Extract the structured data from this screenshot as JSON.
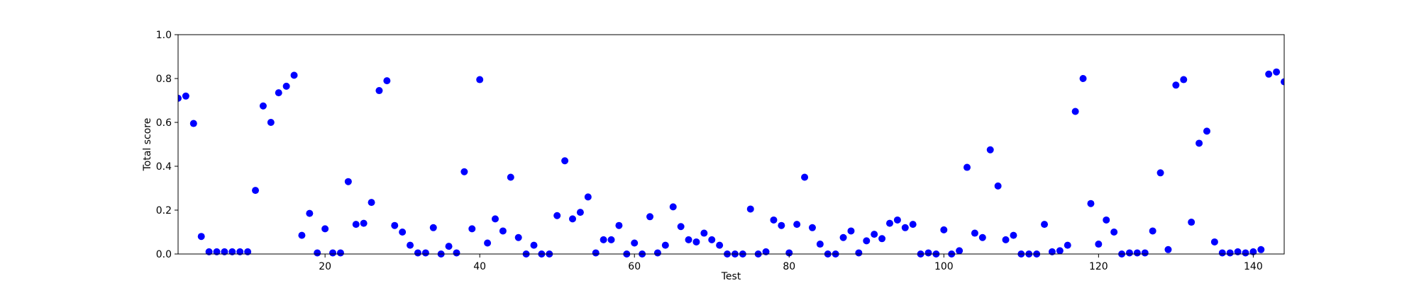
{
  "chart_data": {
    "type": "scatter",
    "title": "",
    "xlabel": "Test",
    "ylabel": "Total score",
    "xlim": [
      1,
      144
    ],
    "ylim": [
      0.0,
      1.0
    ],
    "x_ticks": [
      20,
      40,
      60,
      80,
      100,
      120,
      140
    ],
    "y_ticks": [
      0.0,
      0.2,
      0.4,
      0.6,
      0.8,
      1.0
    ],
    "x_tick_labels": [
      "20",
      "40",
      "60",
      "80",
      "100",
      "120",
      "140"
    ],
    "y_tick_labels": [
      "0.0",
      "0.2",
      "0.4",
      "0.6",
      "0.8",
      "1.0"
    ],
    "grid": false,
    "marker_color": "#0000ff",
    "series": [
      {
        "points": [
          [
            1,
            0.71
          ],
          [
            2,
            0.72
          ],
          [
            3,
            0.595
          ],
          [
            4,
            0.08
          ],
          [
            5,
            0.01
          ],
          [
            6,
            0.01
          ],
          [
            7,
            0.01
          ],
          [
            8,
            0.01
          ],
          [
            9,
            0.01
          ],
          [
            10,
            0.01
          ],
          [
            11,
            0.29
          ],
          [
            12,
            0.675
          ],
          [
            13,
            0.6
          ],
          [
            14,
            0.735
          ],
          [
            15,
            0.765
          ],
          [
            16,
            0.815
          ],
          [
            17,
            0.085
          ],
          [
            18,
            0.185
          ],
          [
            19,
            0.005
          ],
          [
            20,
            0.115
          ],
          [
            21,
            0.005
          ],
          [
            22,
            0.005
          ],
          [
            23,
            0.33
          ],
          [
            24,
            0.135
          ],
          [
            25,
            0.14
          ],
          [
            26,
            0.235
          ],
          [
            27,
            0.745
          ],
          [
            28,
            0.79
          ],
          [
            29,
            0.13
          ],
          [
            30,
            0.1
          ],
          [
            31,
            0.04
          ],
          [
            32,
            0.005
          ],
          [
            33,
            0.005
          ],
          [
            34,
            0.12
          ],
          [
            35,
            0.0
          ],
          [
            36,
            0.035
          ],
          [
            37,
            0.005
          ],
          [
            38,
            0.375
          ],
          [
            39,
            0.115
          ],
          [
            40,
            0.795
          ],
          [
            41,
            0.05
          ],
          [
            42,
            0.16
          ],
          [
            43,
            0.105
          ],
          [
            44,
            0.35
          ],
          [
            45,
            0.075
          ],
          [
            46,
            0.0
          ],
          [
            47,
            0.04
          ],
          [
            48,
            0.0
          ],
          [
            49,
            0.0
          ],
          [
            50,
            0.175
          ],
          [
            51,
            0.425
          ],
          [
            52,
            0.16
          ],
          [
            53,
            0.19
          ],
          [
            54,
            0.26
          ],
          [
            55,
            0.005
          ],
          [
            56,
            0.065
          ],
          [
            57,
            0.065
          ],
          [
            58,
            0.13
          ],
          [
            59,
            0.0
          ],
          [
            60,
            0.05
          ],
          [
            61,
            0.0
          ],
          [
            62,
            0.17
          ],
          [
            63,
            0.005
          ],
          [
            64,
            0.04
          ],
          [
            65,
            0.215
          ],
          [
            66,
            0.125
          ],
          [
            67,
            0.065
          ],
          [
            68,
            0.055
          ],
          [
            69,
            0.095
          ],
          [
            70,
            0.065
          ],
          [
            71,
            0.04
          ],
          [
            72,
            0.0
          ],
          [
            73,
            0.0
          ],
          [
            74,
            0.0
          ],
          [
            75,
            0.205
          ],
          [
            76,
            0.0
          ],
          [
            77,
            0.01
          ],
          [
            78,
            0.155
          ],
          [
            79,
            0.13
          ],
          [
            80,
            0.005
          ],
          [
            81,
            0.135
          ],
          [
            82,
            0.35
          ],
          [
            83,
            0.12
          ],
          [
            84,
            0.045
          ],
          [
            85,
            0.0
          ],
          [
            86,
            0.0
          ],
          [
            87,
            0.075
          ],
          [
            88,
            0.105
          ],
          [
            89,
            0.005
          ],
          [
            90,
            0.06
          ],
          [
            91,
            0.09
          ],
          [
            92,
            0.07
          ],
          [
            93,
            0.14
          ],
          [
            94,
            0.155
          ],
          [
            95,
            0.12
          ],
          [
            96,
            0.135
          ],
          [
            97,
            0.0
          ],
          [
            98,
            0.005
          ],
          [
            99,
            0.0
          ],
          [
            100,
            0.11
          ],
          [
            101,
            0.0
          ],
          [
            102,
            0.015
          ],
          [
            103,
            0.395
          ],
          [
            104,
            0.095
          ],
          [
            105,
            0.075
          ],
          [
            106,
            0.475
          ],
          [
            107,
            0.31
          ],
          [
            108,
            0.065
          ],
          [
            109,
            0.085
          ],
          [
            110,
            0.0
          ],
          [
            111,
            0.0
          ],
          [
            112,
            0.0
          ],
          [
            113,
            0.135
          ],
          [
            114,
            0.01
          ],
          [
            115,
            0.015
          ],
          [
            116,
            0.04
          ],
          [
            117,
            0.65
          ],
          [
            118,
            0.8
          ],
          [
            119,
            0.23
          ],
          [
            120,
            0.045
          ],
          [
            121,
            0.155
          ],
          [
            122,
            0.1
          ],
          [
            123,
            0.0
          ],
          [
            124,
            0.005
          ],
          [
            125,
            0.005
          ],
          [
            126,
            0.005
          ],
          [
            127,
            0.105
          ],
          [
            128,
            0.37
          ],
          [
            129,
            0.02
          ],
          [
            130,
            0.77
          ],
          [
            131,
            0.795
          ],
          [
            132,
            0.145
          ],
          [
            133,
            0.505
          ],
          [
            134,
            0.56
          ],
          [
            135,
            0.055
          ],
          [
            136,
            0.005
          ],
          [
            137,
            0.005
          ],
          [
            138,
            0.01
          ],
          [
            139,
            0.005
          ],
          [
            140,
            0.01
          ],
          [
            141,
            0.02
          ],
          [
            142,
            0.82
          ],
          [
            143,
            0.83
          ],
          [
            144,
            0.785
          ]
        ]
      }
    ]
  }
}
